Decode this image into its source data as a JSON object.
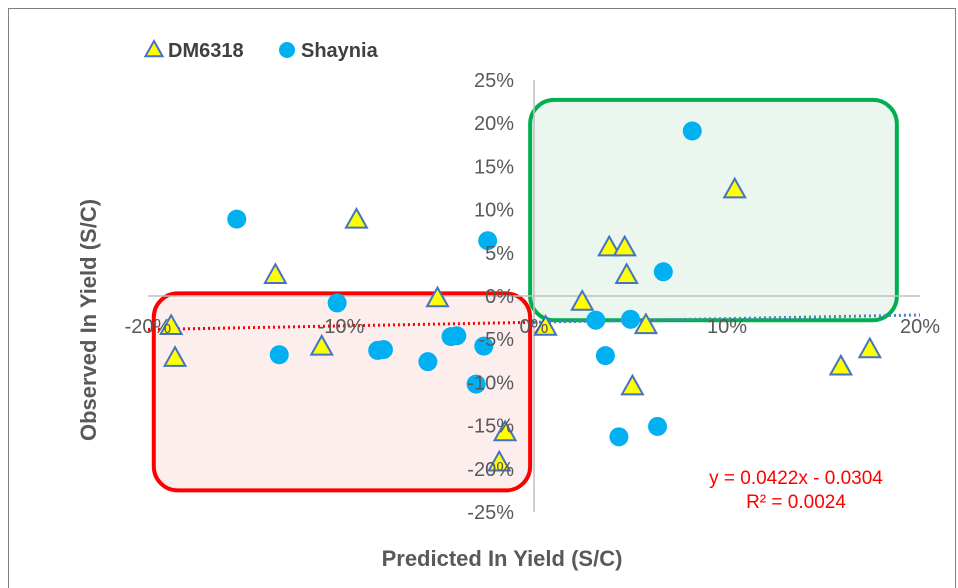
{
  "chart_data": {
    "type": "scatter",
    "title": "",
    "xlabel": "Predicted In Yield (S/C)",
    "ylabel": "Observed In Yield (S/C)",
    "xlim": [
      -20,
      20
    ],
    "ylim": [
      -25,
      25
    ],
    "x_ticks": [
      {
        "value": -20,
        "label": "-20%"
      },
      {
        "value": -10,
        "label": "-10%"
      },
      {
        "value": 0,
        "label": "0%"
      },
      {
        "value": 10,
        "label": "10%"
      },
      {
        "value": 20,
        "label": "20%"
      }
    ],
    "y_ticks": [
      {
        "value": 25,
        "label": "25%"
      },
      {
        "value": 20,
        "label": "20%"
      },
      {
        "value": 15,
        "label": "15%"
      },
      {
        "value": 10,
        "label": "10%"
      },
      {
        "value": 5,
        "label": "5%"
      },
      {
        "value": 0,
        "label": "0%"
      },
      {
        "value": -5,
        "label": "-5%"
      },
      {
        "value": -10,
        "label": "-10%"
      },
      {
        "value": -15,
        "label": "-15%"
      },
      {
        "value": -20,
        "label": "-20%"
      },
      {
        "value": -25,
        "label": "-25%"
      }
    ],
    "grid": false,
    "legend_position": "top-left",
    "series": [
      {
        "name": "DM6318",
        "marker": "triangle",
        "color": "#ffff00",
        "edge_color": "#4472c4",
        "points": [
          {
            "x": -18.8,
            "y": -3.5
          },
          {
            "x": -18.6,
            "y": -7.2
          },
          {
            "x": -13.4,
            "y": 2.4
          },
          {
            "x": -11.0,
            "y": -5.9
          },
          {
            "x": -9.2,
            "y": 8.8
          },
          {
            "x": -5.0,
            "y": -0.3
          },
          {
            "x": -1.5,
            "y": -15.8
          },
          {
            "x": -1.8,
            "y": -19.3
          },
          {
            "x": 0.6,
            "y": -3.6
          },
          {
            "x": 2.5,
            "y": -0.7
          },
          {
            "x": 3.9,
            "y": 5.6
          },
          {
            "x": 4.7,
            "y": 5.6
          },
          {
            "x": 4.8,
            "y": 2.4
          },
          {
            "x": 5.1,
            "y": -10.5
          },
          {
            "x": 5.8,
            "y": -3.4
          },
          {
            "x": 10.4,
            "y": 12.3
          },
          {
            "x": 15.9,
            "y": -8.2
          },
          {
            "x": 17.4,
            "y": -6.2
          }
        ]
      },
      {
        "name": "Shaynia",
        "marker": "circle",
        "color": "#00b0f0",
        "points": [
          {
            "x": -15.4,
            "y": 8.9
          },
          {
            "x": -13.2,
            "y": -6.8
          },
          {
            "x": -10.2,
            "y": -0.8
          },
          {
            "x": -8.1,
            "y": -6.3
          },
          {
            "x": -7.8,
            "y": -6.2
          },
          {
            "x": -5.5,
            "y": -7.6
          },
          {
            "x": -4.3,
            "y": -4.7
          },
          {
            "x": -4.0,
            "y": -4.6
          },
          {
            "x": -3.0,
            "y": -10.2
          },
          {
            "x": -2.6,
            "y": -5.8
          },
          {
            "x": -2.4,
            "y": 6.4
          },
          {
            "x": 3.2,
            "y": -2.8
          },
          {
            "x": 3.7,
            "y": -6.9
          },
          {
            "x": 4.4,
            "y": -16.3
          },
          {
            "x": 5.0,
            "y": -2.7
          },
          {
            "x": 6.4,
            "y": -15.1
          },
          {
            "x": 6.7,
            "y": 2.8
          },
          {
            "x": 8.2,
            "y": 19.1
          }
        ]
      }
    ],
    "trendline": {
      "slope": 0.0422,
      "intercept": -0.0304,
      "equation": "y = 0.0422x - 0.0304",
      "r2": "R² = 0.0024",
      "style": "dotted"
    },
    "highlight_regions": [
      {
        "label": "",
        "x_range": [
          -19.7,
          -0.2
        ],
        "y_range": [
          -22.5,
          0.3
        ],
        "fill": "#fdeeee",
        "stroke": "#ff0000"
      },
      {
        "label": "",
        "x_range": [
          -0.2,
          18.8
        ],
        "y_range": [
          -2.8,
          22.7
        ],
        "fill": "#ebf6ef",
        "stroke": "#00b050"
      }
    ]
  }
}
